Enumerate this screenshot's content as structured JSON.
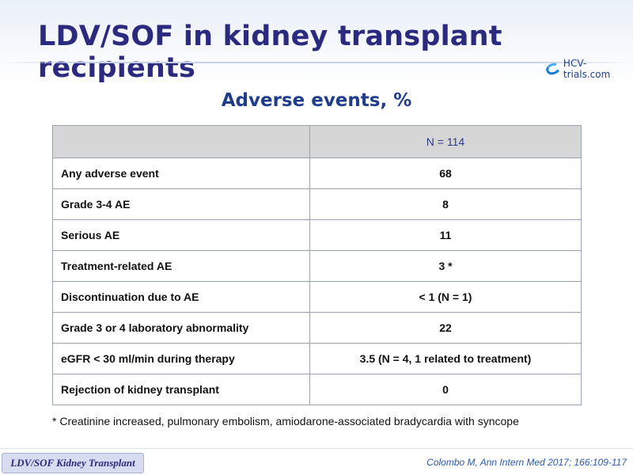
{
  "slide": {
    "title": "LDV/SOF in kidney transplant recipients",
    "logo_text": "HCV-trials.com",
    "subtitle": "Adverse events, %",
    "footnote": "* Creatinine increased, pulmonary embolism, amiodarone-associated bradycardia with syncope",
    "badge": "LDV/SOF Kidney Transplant",
    "citation": "Colombo M, Ann Intern Med 2017; 166:109-117"
  },
  "table": {
    "header": {
      "label": "",
      "value": "N = 114"
    },
    "rows": [
      {
        "label": "Any adverse event",
        "value": "68"
      },
      {
        "label": "Grade 3-4 AE",
        "value": "8"
      },
      {
        "label": "Serious AE",
        "value": "11"
      },
      {
        "label": "Treatment-related AE",
        "value": "3 *"
      },
      {
        "label": "Discontinuation due to AE",
        "value": "< 1 (N = 1)"
      },
      {
        "label": "Grade 3 or 4 laboratory abnormality",
        "value": "22"
      },
      {
        "label": "eGFR < 30 ml/min during therapy",
        "value": "3.5 (N = 4, 1 related to treatment)"
      },
      {
        "label": "Rejection of kidney transplant",
        "value": "0"
      }
    ]
  },
  "colors": {
    "title": "#2b2a7e",
    "subtitle": "#1f3d8a",
    "header_fill": "#d6d6d6",
    "citation": "#2b59a8"
  },
  "icons": {
    "logo": "hcv-trials-logo-icon"
  }
}
